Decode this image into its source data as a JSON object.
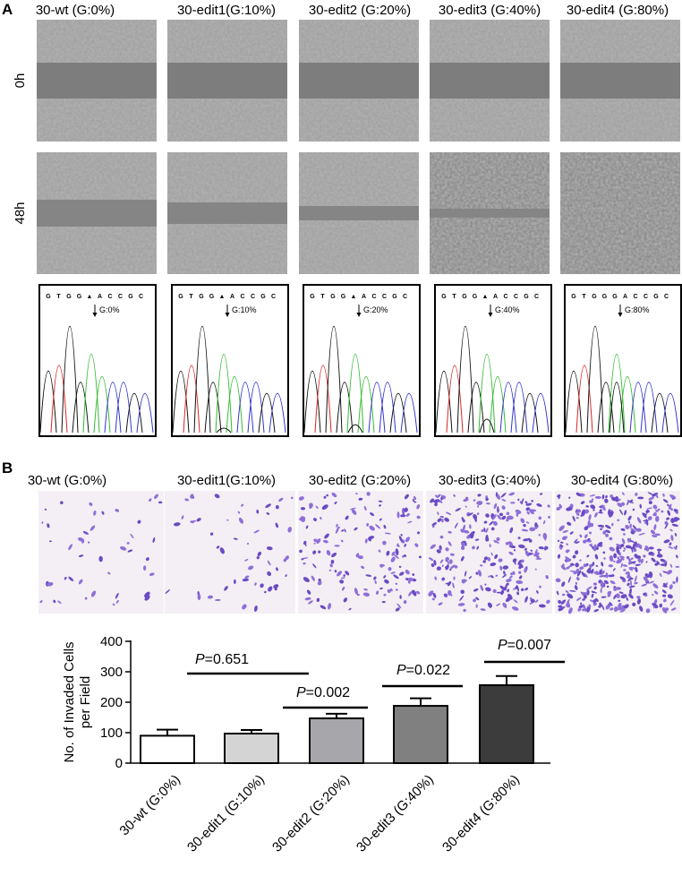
{
  "panel_a": {
    "label": "A",
    "columns": [
      "30-wt (G:0%)",
      "30-edit1(G:10%)",
      "30-edit2 (G:20%)",
      "30-edit3 (G:40%)",
      "30-edit4 (G:80%)"
    ],
    "rows": [
      "0h",
      "48h"
    ],
    "chromatograms": [
      {
        "sequence": [
          "G",
          "T",
          "G",
          "G",
          "▲",
          "A",
          "C",
          "C",
          "G",
          "C"
        ],
        "annotation": "G:0%"
      },
      {
        "sequence": [
          "G",
          "T",
          "G",
          "G",
          "▲",
          "A",
          "C",
          "C",
          "G",
          "C"
        ],
        "annotation": "G:10%"
      },
      {
        "sequence": [
          "G",
          "T",
          "G",
          "G",
          "▲",
          "A",
          "C",
          "C",
          "G",
          "C"
        ],
        "annotation": "G:20%"
      },
      {
        "sequence": [
          "G",
          "T",
          "G",
          "G",
          "▲",
          "A",
          "C",
          "C",
          "G",
          "C"
        ],
        "annotation": "G:40%"
      },
      {
        "sequence": [
          "G",
          "T",
          "G",
          "G",
          "G",
          "A",
          "C",
          "C",
          "G",
          "C"
        ],
        "annotation": "G:80%"
      }
    ]
  },
  "panel_b": {
    "label": "B",
    "columns": [
      "30-wt (G:0%)",
      "30-edit1(G:10%)",
      "30-edit2 (G:20%)",
      "30-edit3 (G:40%)",
      "30-edit4 (G:80%)"
    ]
  },
  "chart_data": {
    "type": "bar",
    "y_label": [
      "No. of Invaded Cells",
      "per Field"
    ],
    "categories": [
      "30-wt (G:0%)",
      "30-edit1 (G:10%)",
      "30-edit2 (G:20%)",
      "30-edit3 (G:40%)",
      "30-edit4 (G:80%)"
    ],
    "values": [
      90,
      97,
      147,
      188,
      256
    ],
    "errors": [
      20,
      12,
      15,
      25,
      30
    ],
    "colors": [
      "#ffffff",
      "#d4d4d4",
      "#a7a7ab",
      "#808080",
      "#3c3c3c"
    ],
    "ylim": [
      0,
      400
    ],
    "yticks": [
      0,
      100,
      200,
      300,
      400
    ],
    "annotations": [
      {
        "symbol": "P",
        "text": "=0.651"
      },
      {
        "symbol": "P",
        "text": "=0.002"
      },
      {
        "symbol": "P",
        "text": "=0.022"
      },
      {
        "symbol": "P",
        "text": "=0.007"
      }
    ]
  }
}
